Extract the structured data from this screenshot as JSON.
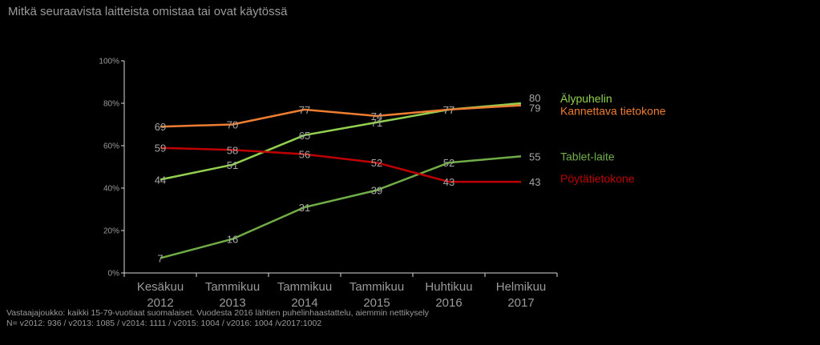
{
  "page": {
    "title": "Mitkä seuraavista laitteista omistaa tai ovat käytössä"
  },
  "footnote": {
    "line1": "Vastaajajoukko: kaikki 15-79-vuotiaat suomalaiset. Vuodesta 2016 lähtien puhelinhaastattelu, aiemmin nettikysely",
    "line2": "N= v2012: 936 / v2013: 1085 / v2014: 1111 / v2015: 1004 / v2016: 1004 /v2017:1002"
  },
  "colors": {
    "background": "#000000",
    "text": "#9a9a9a",
    "axis": "#d9d9d9",
    "value_label": "#a6a6a6"
  },
  "chart_data": {
    "type": "line",
    "title": "Mitkä seuraavista laitteista omistaa tai ovat käytössä",
    "categories": [
      "Kesäkuu 2012",
      "Tammikuu 2013",
      "Tammikuu 2014",
      "Tammikuu 2015",
      "Huhtikuu 2016",
      "Helmikuu 2017"
    ],
    "category_lines": [
      [
        "Kesäkuu",
        "2012"
      ],
      [
        "Tammikuu",
        "2013"
      ],
      [
        "Tammikuu",
        "2014"
      ],
      [
        "Tammikuu",
        "2015"
      ],
      [
        "Huhtikuu",
        "2016"
      ],
      [
        "Helmikuu",
        "2017"
      ]
    ],
    "ylim": [
      0,
      100
    ],
    "yticks": [
      "0%",
      "20%",
      "40%",
      "60%",
      "80%",
      "100%"
    ],
    "grid": false,
    "legend": "right, at line ends",
    "series": [
      {
        "name": "Älypuhelin",
        "color": "#92d050",
        "values": [
          44,
          51,
          65,
          71,
          77,
          80
        ]
      },
      {
        "name": "Kannettava tietokone",
        "color": "#ed7d31",
        "values": [
          69,
          70,
          77,
          74,
          77,
          79
        ]
      },
      {
        "name": "Tablet-laite",
        "color": "#70ad47",
        "values": [
          7,
          16,
          31,
          39,
          52,
          55
        ]
      },
      {
        "name": "Pöytätietokone",
        "color": "#c00000",
        "values": [
          59,
          58,
          56,
          52,
          43,
          43
        ]
      }
    ]
  }
}
